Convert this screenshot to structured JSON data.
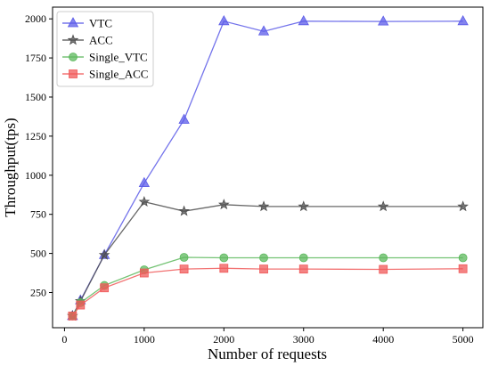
{
  "chart_data": {
    "type": "line",
    "title": "",
    "xlabel": "Number of requests",
    "ylabel": "Throughput(tps)",
    "x": [
      100,
      200,
      500,
      1000,
      1500,
      2000,
      2500,
      3000,
      4000,
      5000
    ],
    "xlim": [
      -150,
      5250
    ],
    "ylim": [
      25,
      2075
    ],
    "xticks": [
      0,
      1000,
      2000,
      3000,
      4000,
      5000
    ],
    "yticks": [
      250,
      500,
      750,
      1000,
      1250,
      1500,
      1750,
      2000
    ],
    "grid": false,
    "legend_position": "top-left",
    "series": [
      {
        "name": "VTC",
        "color": "#5b5be8",
        "marker": "triangle",
        "values": [
          100,
          200,
          490,
          950,
          1355,
          1985,
          1920,
          1985,
          1983,
          1985
        ]
      },
      {
        "name": "ACC",
        "color": "#4d4d4d",
        "marker": "star",
        "values": [
          100,
          195,
          490,
          830,
          770,
          812,
          800,
          800,
          800,
          800
        ]
      },
      {
        "name": "Single_VTC",
        "color": "#5cb85c",
        "marker": "circle",
        "values": [
          100,
          185,
          295,
          395,
          475,
          472,
          472,
          472,
          472,
          472
        ]
      },
      {
        "name": "Single_ACC",
        "color": "#f05a5a",
        "marker": "square",
        "values": [
          100,
          170,
          280,
          375,
          400,
          405,
          400,
          400,
          398,
          402
        ]
      }
    ]
  }
}
